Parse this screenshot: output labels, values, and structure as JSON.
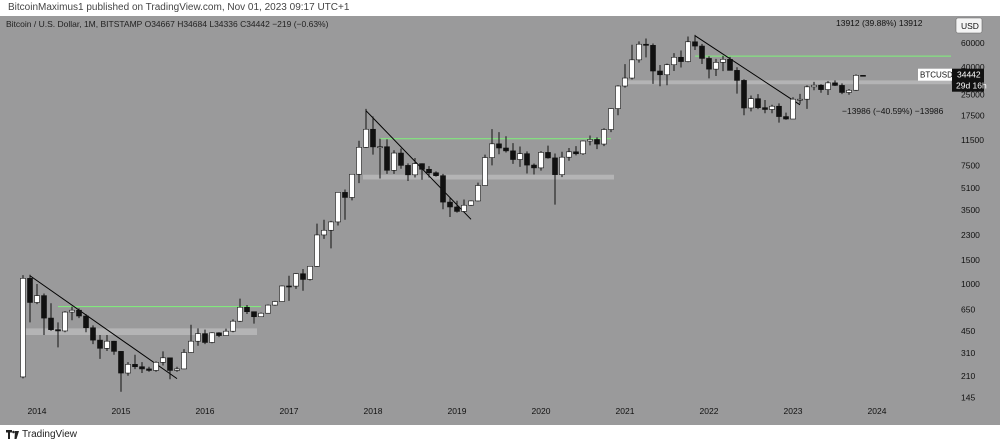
{
  "publish_note": "BitcoinMaximus1 published on TradingView.com, Nov 01, 2023 09:17 UTC+1",
  "footer": {
    "brand": "TradingView"
  },
  "colors": {
    "background": "#9a9a9b",
    "candle_up": "#ffffff",
    "candle_down": "#111111",
    "support_zone": "#b4b4b5",
    "resistance_line": "#7ef37a",
    "trend_line": "#000000"
  },
  "chart_data": {
    "type": "candlestick",
    "title": "Bitcoin / U.S. Dollar, 1M, BITSTAMP",
    "ohlc": {
      "o_label": "O",
      "o": "34667",
      "h_label": "H",
      "h": "34684",
      "l_label": "L",
      "l": "34336",
      "c_label": "C",
      "c": "34442",
      "change": "−219 (−0.63%)"
    },
    "currency": "USD",
    "symbol": "BTCUSD",
    "last_price": "34442",
    "countdown": "29d 16h",
    "y_scale": "log",
    "ylim": [
      130,
      95000
    ],
    "y_ticks": [
      "60000",
      "40000",
      "25000",
      "17500",
      "11500",
      "7500",
      "5100",
      "3500",
      "2300",
      "1500",
      "1000",
      "650",
      "450",
      "310",
      "210",
      "145"
    ],
    "x_ticks": [
      "2014",
      "2015",
      "2016",
      "2017",
      "2018",
      "2019",
      "2020",
      "2021",
      "2022",
      "2023",
      "2024"
    ],
    "annotations": [
      {
        "text": "13912 (39.88%) 13912"
      },
      {
        "text": "−13986 (−40.59%) −13986"
      }
    ],
    "candles": [
      {
        "d": "2013-11",
        "o": 206,
        "h": 1163,
        "l": 201,
        "c": 1100
      },
      {
        "d": "2013-12",
        "o": 1100,
        "h": 1170,
        "l": 520,
        "c": 730
      },
      {
        "d": "2014-01",
        "o": 730,
        "h": 1000,
        "l": 710,
        "c": 820
      },
      {
        "d": "2014-02",
        "o": 820,
        "h": 850,
        "l": 420,
        "c": 560
      },
      {
        "d": "2014-03",
        "o": 560,
        "h": 720,
        "l": 450,
        "c": 460
      },
      {
        "d": "2014-04",
        "o": 460,
        "h": 520,
        "l": 340,
        "c": 450
      },
      {
        "d": "2014-05",
        "o": 450,
        "h": 630,
        "l": 440,
        "c": 620
      },
      {
        "d": "2014-06",
        "o": 620,
        "h": 680,
        "l": 540,
        "c": 640
      },
      {
        "d": "2014-07",
        "o": 640,
        "h": 660,
        "l": 560,
        "c": 580
      },
      {
        "d": "2014-08",
        "o": 580,
        "h": 600,
        "l": 440,
        "c": 475
      },
      {
        "d": "2014-09",
        "o": 475,
        "h": 495,
        "l": 360,
        "c": 385
      },
      {
        "d": "2014-10",
        "o": 385,
        "h": 420,
        "l": 280,
        "c": 335
      },
      {
        "d": "2014-11",
        "o": 335,
        "h": 420,
        "l": 320,
        "c": 378
      },
      {
        "d": "2014-12",
        "o": 378,
        "h": 380,
        "l": 300,
        "c": 318
      },
      {
        "d": "2015-01",
        "o": 318,
        "h": 320,
        "l": 160,
        "c": 220
      },
      {
        "d": "2015-02",
        "o": 220,
        "h": 265,
        "l": 210,
        "c": 255
      },
      {
        "d": "2015-03",
        "o": 255,
        "h": 300,
        "l": 235,
        "c": 245
      },
      {
        "d": "2015-04",
        "o": 245,
        "h": 265,
        "l": 220,
        "c": 236
      },
      {
        "d": "2015-05",
        "o": 236,
        "h": 245,
        "l": 225,
        "c": 230
      },
      {
        "d": "2015-06",
        "o": 230,
        "h": 268,
        "l": 225,
        "c": 264
      },
      {
        "d": "2015-07",
        "o": 264,
        "h": 318,
        "l": 250,
        "c": 285
      },
      {
        "d": "2015-08",
        "o": 285,
        "h": 285,
        "l": 198,
        "c": 230
      },
      {
        "d": "2015-09",
        "o": 230,
        "h": 245,
        "l": 225,
        "c": 236
      },
      {
        "d": "2015-10",
        "o": 236,
        "h": 330,
        "l": 235,
        "c": 312
      },
      {
        "d": "2015-11",
        "o": 312,
        "h": 500,
        "l": 310,
        "c": 378
      },
      {
        "d": "2015-12",
        "o": 378,
        "h": 470,
        "l": 350,
        "c": 430
      },
      {
        "d": "2016-01",
        "o": 430,
        "h": 460,
        "l": 360,
        "c": 370
      },
      {
        "d": "2016-02",
        "o": 370,
        "h": 440,
        "l": 365,
        "c": 436
      },
      {
        "d": "2016-03",
        "o": 436,
        "h": 440,
        "l": 405,
        "c": 416
      },
      {
        "d": "2016-04",
        "o": 416,
        "h": 468,
        "l": 414,
        "c": 448
      },
      {
        "d": "2016-05",
        "o": 448,
        "h": 548,
        "l": 440,
        "c": 531
      },
      {
        "d": "2016-06",
        "o": 531,
        "h": 780,
        "l": 525,
        "c": 673
      },
      {
        "d": "2016-07",
        "o": 673,
        "h": 700,
        "l": 600,
        "c": 624
      },
      {
        "d": "2016-08",
        "o": 624,
        "h": 625,
        "l": 510,
        "c": 573
      },
      {
        "d": "2016-09",
        "o": 573,
        "h": 615,
        "l": 570,
        "c": 608
      },
      {
        "d": "2016-10",
        "o": 608,
        "h": 705,
        "l": 605,
        "c": 698
      },
      {
        "d": "2016-11",
        "o": 698,
        "h": 750,
        "l": 690,
        "c": 742
      },
      {
        "d": "2016-12",
        "o": 742,
        "h": 975,
        "l": 740,
        "c": 966
      },
      {
        "d": "2017-01",
        "o": 966,
        "h": 1150,
        "l": 750,
        "c": 964
      },
      {
        "d": "2017-02",
        "o": 964,
        "h": 1200,
        "l": 920,
        "c": 1190
      },
      {
        "d": "2017-03",
        "o": 1190,
        "h": 1290,
        "l": 890,
        "c": 1080
      },
      {
        "d": "2017-04",
        "o": 1080,
        "h": 1350,
        "l": 1060,
        "c": 1350
      },
      {
        "d": "2017-05",
        "o": 1350,
        "h": 2790,
        "l": 1340,
        "c": 2300
      },
      {
        "d": "2017-06",
        "o": 2300,
        "h": 2980,
        "l": 2150,
        "c": 2490
      },
      {
        "d": "2017-07",
        "o": 2490,
        "h": 2920,
        "l": 1830,
        "c": 2870
      },
      {
        "d": "2017-08",
        "o": 2870,
        "h": 4740,
        "l": 2700,
        "c": 4740
      },
      {
        "d": "2017-09",
        "o": 4740,
        "h": 4980,
        "l": 2980,
        "c": 4350
      },
      {
        "d": "2017-10",
        "o": 4350,
        "h": 6470,
        "l": 4140,
        "c": 6450
      },
      {
        "d": "2017-11",
        "o": 6450,
        "h": 11400,
        "l": 5550,
        "c": 10200
      },
      {
        "d": "2017-12",
        "o": 10200,
        "h": 19600,
        "l": 10100,
        "c": 13860
      },
      {
        "d": "2018-01",
        "o": 13860,
        "h": 17200,
        "l": 9000,
        "c": 10270
      },
      {
        "d": "2018-02",
        "o": 10270,
        "h": 11800,
        "l": 6000,
        "c": 10300
      },
      {
        "d": "2018-03",
        "o": 10300,
        "h": 11700,
        "l": 6500,
        "c": 6900
      },
      {
        "d": "2018-04",
        "o": 6900,
        "h": 9700,
        "l": 6500,
        "c": 9250
      },
      {
        "d": "2018-05",
        "o": 9250,
        "h": 9990,
        "l": 7080,
        "c": 7500
      },
      {
        "d": "2018-06",
        "o": 7500,
        "h": 7770,
        "l": 5750,
        "c": 6390
      },
      {
        "d": "2018-07",
        "o": 6390,
        "h": 8500,
        "l": 6100,
        "c": 7730
      },
      {
        "d": "2018-08",
        "o": 7730,
        "h": 7770,
        "l": 5880,
        "c": 7020
      },
      {
        "d": "2018-09",
        "o": 7020,
        "h": 7400,
        "l": 6100,
        "c": 6620
      },
      {
        "d": "2018-10",
        "o": 6620,
        "h": 6770,
        "l": 6200,
        "c": 6300
      },
      {
        "d": "2018-11",
        "o": 6300,
        "h": 6500,
        "l": 3560,
        "c": 4020
      },
      {
        "d": "2018-12",
        "o": 4020,
        "h": 4300,
        "l": 3120,
        "c": 3700
      },
      {
        "d": "2019-01",
        "o": 3700,
        "h": 4110,
        "l": 3360,
        "c": 3430
      },
      {
        "d": "2019-02",
        "o": 3430,
        "h": 4200,
        "l": 3380,
        "c": 3810
      },
      {
        "d": "2019-03",
        "o": 3810,
        "h": 4140,
        "l": 3780,
        "c": 4100
      },
      {
        "d": "2019-04",
        "o": 4100,
        "h": 5600,
        "l": 4070,
        "c": 5330
      },
      {
        "d": "2019-05",
        "o": 5330,
        "h": 9000,
        "l": 5320,
        "c": 8570
      },
      {
        "d": "2019-06",
        "o": 8570,
        "h": 13900,
        "l": 7500,
        "c": 10820
      },
      {
        "d": "2019-07",
        "o": 10820,
        "h": 13200,
        "l": 9070,
        "c": 10080
      },
      {
        "d": "2019-08",
        "o": 10080,
        "h": 12300,
        "l": 9340,
        "c": 9600
      },
      {
        "d": "2019-09",
        "o": 9600,
        "h": 10950,
        "l": 7700,
        "c": 8290
      },
      {
        "d": "2019-10",
        "o": 8290,
        "h": 10350,
        "l": 7310,
        "c": 9150
      },
      {
        "d": "2019-11",
        "o": 9150,
        "h": 9510,
        "l": 6540,
        "c": 7540
      },
      {
        "d": "2019-12",
        "o": 7540,
        "h": 7750,
        "l": 6430,
        "c": 7190
      },
      {
        "d": "2020-01",
        "o": 7190,
        "h": 9560,
        "l": 6860,
        "c": 9350
      },
      {
        "d": "2020-02",
        "o": 9350,
        "h": 10500,
        "l": 8420,
        "c": 8520
      },
      {
        "d": "2020-03",
        "o": 8520,
        "h": 9180,
        "l": 3850,
        "c": 6410
      },
      {
        "d": "2020-04",
        "o": 6410,
        "h": 9460,
        "l": 6150,
        "c": 8620
      },
      {
        "d": "2020-05",
        "o": 8620,
        "h": 10070,
        "l": 8110,
        "c": 9450
      },
      {
        "d": "2020-06",
        "o": 9450,
        "h": 10400,
        "l": 8900,
        "c": 9140
      },
      {
        "d": "2020-07",
        "o": 9140,
        "h": 11440,
        "l": 8960,
        "c": 11350
      },
      {
        "d": "2020-08",
        "o": 11350,
        "h": 12470,
        "l": 10550,
        "c": 11650
      },
      {
        "d": "2020-09",
        "o": 11650,
        "h": 12080,
        "l": 9880,
        "c": 10780
      },
      {
        "d": "2020-10",
        "o": 10780,
        "h": 14100,
        "l": 10400,
        "c": 13800
      },
      {
        "d": "2020-11",
        "o": 13800,
        "h": 19800,
        "l": 13200,
        "c": 19700
      },
      {
        "d": "2020-12",
        "o": 19700,
        "h": 29300,
        "l": 17600,
        "c": 28900
      },
      {
        "d": "2021-01",
        "o": 28900,
        "h": 41900,
        "l": 28100,
        "c": 33100
      },
      {
        "d": "2021-02",
        "o": 33100,
        "h": 58300,
        "l": 32300,
        "c": 45100
      },
      {
        "d": "2021-03",
        "o": 45100,
        "h": 61700,
        "l": 43000,
        "c": 58800
      },
      {
        "d": "2021-04",
        "o": 58800,
        "h": 64800,
        "l": 47000,
        "c": 57700
      },
      {
        "d": "2021-05",
        "o": 57700,
        "h": 59500,
        "l": 30000,
        "c": 37300
      },
      {
        "d": "2021-06",
        "o": 37300,
        "h": 41300,
        "l": 28800,
        "c": 35000
      },
      {
        "d": "2021-07",
        "o": 35000,
        "h": 42300,
        "l": 29300,
        "c": 41500
      },
      {
        "d": "2021-08",
        "o": 41500,
        "h": 50500,
        "l": 37300,
        "c": 47100
      },
      {
        "d": "2021-09",
        "o": 47100,
        "h": 52900,
        "l": 39600,
        "c": 43800
      },
      {
        "d": "2021-10",
        "o": 43800,
        "h": 67000,
        "l": 43300,
        "c": 61300
      },
      {
        "d": "2021-11",
        "o": 61300,
        "h": 69000,
        "l": 53300,
        "c": 57000
      },
      {
        "d": "2021-12",
        "o": 57000,
        "h": 59100,
        "l": 42000,
        "c": 46200
      },
      {
        "d": "2022-01",
        "o": 46200,
        "h": 47900,
        "l": 32900,
        "c": 38500
      },
      {
        "d": "2022-02",
        "o": 38500,
        "h": 45800,
        "l": 34300,
        "c": 43200
      },
      {
        "d": "2022-03",
        "o": 43200,
        "h": 48200,
        "l": 37200,
        "c": 45500
      },
      {
        "d": "2022-04",
        "o": 45500,
        "h": 47400,
        "l": 37700,
        "c": 37700
      },
      {
        "d": "2022-05",
        "o": 37700,
        "h": 39800,
        "l": 25400,
        "c": 31800
      },
      {
        "d": "2022-06",
        "o": 31800,
        "h": 32400,
        "l": 17600,
        "c": 19900
      },
      {
        "d": "2022-07",
        "o": 19900,
        "h": 24600,
        "l": 18800,
        "c": 23300
      },
      {
        "d": "2022-08",
        "o": 23300,
        "h": 25200,
        "l": 19500,
        "c": 20000
      },
      {
        "d": "2022-09",
        "o": 20000,
        "h": 22800,
        "l": 18200,
        "c": 19400
      },
      {
        "d": "2022-10",
        "o": 19400,
        "h": 21000,
        "l": 18200,
        "c": 20500
      },
      {
        "d": "2022-11",
        "o": 20500,
        "h": 21500,
        "l": 15500,
        "c": 17200
      },
      {
        "d": "2022-12",
        "o": 17200,
        "h": 18400,
        "l": 16300,
        "c": 16500
      },
      {
        "d": "2023-01",
        "o": 16500,
        "h": 23900,
        "l": 16500,
        "c": 23100
      },
      {
        "d": "2023-02",
        "o": 23100,
        "h": 25300,
        "l": 21400,
        "c": 23100
      },
      {
        "d": "2023-03",
        "o": 23100,
        "h": 29200,
        "l": 19600,
        "c": 28500
      },
      {
        "d": "2023-04",
        "o": 28500,
        "h": 31000,
        "l": 26900,
        "c": 29300
      },
      {
        "d": "2023-05",
        "o": 29300,
        "h": 29800,
        "l": 25800,
        "c": 27200
      },
      {
        "d": "2023-06",
        "o": 27200,
        "h": 31400,
        "l": 24800,
        "c": 30500
      },
      {
        "d": "2023-07",
        "o": 30500,
        "h": 31800,
        "l": 28900,
        "c": 29200
      },
      {
        "d": "2023-08",
        "o": 29200,
        "h": 30200,
        "l": 25200,
        "c": 25900
      },
      {
        "d": "2023-09",
        "o": 25900,
        "h": 27500,
        "l": 24900,
        "c": 26900
      },
      {
        "d": "2023-10",
        "o": 26900,
        "h": 35200,
        "l": 26600,
        "c": 34667
      },
      {
        "d": "2023-11",
        "o": 34667,
        "h": 34684,
        "l": 34336,
        "c": 34442
      }
    ],
    "zones": [
      {
        "from": "2013-11",
        "to": "2016-08",
        "lo": 420,
        "hi": 470
      },
      {
        "from": "2017-12",
        "to": "2020-11",
        "lo": 5900,
        "hi": 6400
      },
      {
        "from": "2021-01",
        "to": "2024-12",
        "lo": 29800,
        "hi": 31800
      }
    ],
    "resistance_lines": [
      {
        "from": "2014-04",
        "to": "2016-09",
        "price": 680
      },
      {
        "from": "2018-02",
        "to": "2020-11",
        "price": 11800
      },
      {
        "from": "2021-11",
        "to": "2024-12",
        "price": 48000
      }
    ],
    "trend_lines": [
      {
        "from": "2013-12",
        "p1": 1150,
        "to": "2015-09",
        "p2": 200
      },
      {
        "from": "2017-12",
        "p1": 19000,
        "to": "2019-03",
        "p2": 3000
      },
      {
        "from": "2021-11",
        "p1": 68000,
        "to": "2023-02",
        "p2": 21000
      }
    ]
  }
}
